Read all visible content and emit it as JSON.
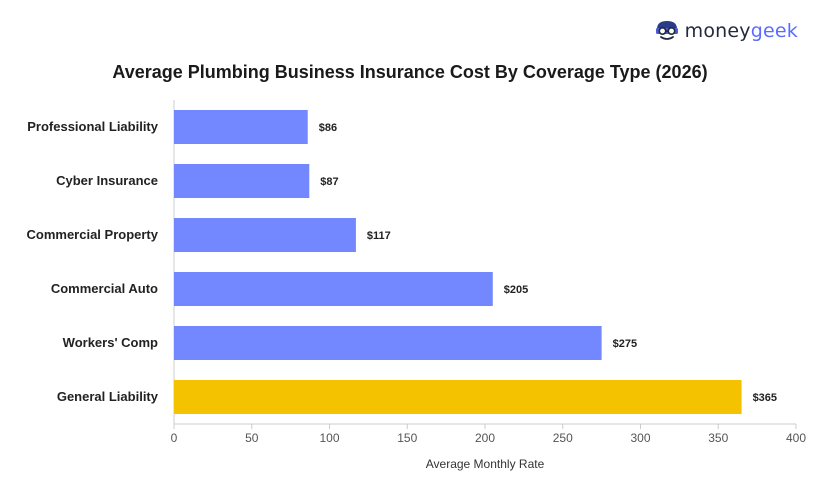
{
  "brand": {
    "name_a": "money",
    "name_b": "geek"
  },
  "colors": {
    "bar": "#7388ff",
    "highlight": "#f5c200",
    "axis": "#cccccc"
  },
  "chart_data": {
    "type": "bar",
    "orientation": "horizontal",
    "title": "Average Plumbing Business Insurance Cost By Coverage Type (2026)",
    "xlabel": "Average Monthly Rate",
    "ylabel": "",
    "xlim": [
      0,
      400
    ],
    "xticks": [
      0,
      50,
      100,
      150,
      200,
      250,
      300,
      350,
      400
    ],
    "categories": [
      "Professional Liability",
      "Cyber Insurance",
      "Commercial Property",
      "Commercial Auto",
      "Workers' Comp",
      "General Liability"
    ],
    "values": [
      86,
      87,
      117,
      205,
      275,
      365
    ],
    "labels": [
      "$86",
      "$87",
      "$117",
      "$205",
      "$275",
      "$365"
    ],
    "highlight": "General Liability",
    "grid": false
  }
}
